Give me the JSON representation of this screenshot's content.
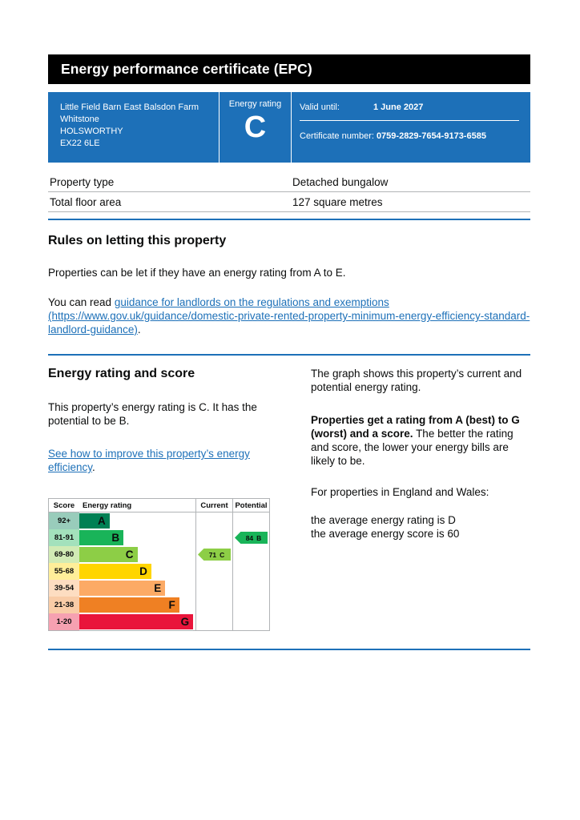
{
  "header": {
    "title": "Energy performance certificate (EPC)"
  },
  "banner": {
    "address_lines": [
      "Little Field Barn East Balsdon Farm",
      "Whitstone",
      "HOLSWORTHY",
      "EX22 6LE"
    ],
    "energy_rating_label": "Energy rating",
    "energy_rating_value": "C",
    "valid_until_label": "Valid until:",
    "valid_until_value": "1 June 2027",
    "certificate_number_label": "Certificate number:",
    "certificate_number_value": "0759-2829-7654-9173-6585"
  },
  "property_details": {
    "rows": [
      {
        "label": "Property type",
        "value": "Detached bungalow"
      },
      {
        "label": "Total floor area",
        "value": "127 square metres"
      }
    ]
  },
  "letting_rules": {
    "heading": "Rules on letting this property",
    "intro": "Properties can be let if they have an energy rating from A to E.",
    "read_prefix": "You can read ",
    "link_text": "guidance for landlords on the regulations and exemptions (https://www.gov.uk/guidance/domestic-private-rented-property-minimum-energy-efficiency-standard-landlord-guidance)",
    "period": "."
  },
  "rating_section": {
    "heading": "Energy rating and score",
    "summary": "This property’s energy rating is C. It has the potential to be B.",
    "improve_link": "See how to improve this property’s energy efficiency",
    "period": ".",
    "graph_intro": "The graph shows this property’s current and potential energy rating.",
    "explain_bold": "Properties get a rating from A (best) to G (worst) and a score.",
    "explain_rest": "The better the rating and score, the lower your energy bills are likely to be.",
    "region_intro": "For properties in England and Wales:",
    "average_rating": "the average energy rating is D",
    "average_score": "the average energy score is 60"
  },
  "chart_data": {
    "type": "epc-rating-bands",
    "headers": {
      "score": "Score",
      "rating": "Energy rating",
      "current": "Current",
      "potential": "Potential"
    },
    "bands": [
      {
        "range": "92+",
        "letter": "A",
        "color": "#008054",
        "tint": "#99ccbb",
        "bar_width": "26%"
      },
      {
        "range": "81-91",
        "letter": "B",
        "color": "#19b459",
        "tint": "#a3e1bc",
        "bar_width": "38%"
      },
      {
        "range": "69-80",
        "letter": "C",
        "color": "#8dce46",
        "tint": "#d1ebb5",
        "bar_width": "50%"
      },
      {
        "range": "55-68",
        "letter": "D",
        "color": "#ffd500",
        "tint": "#ffee99",
        "bar_width": "62%"
      },
      {
        "range": "39-54",
        "letter": "E",
        "color": "#fcaa65",
        "tint": "#fdddc1",
        "bar_width": "74%"
      },
      {
        "range": "21-38",
        "letter": "F",
        "color": "#ef8023",
        "tint": "#f9cca7",
        "bar_width": "86%"
      },
      {
        "range": "1-20",
        "letter": "G",
        "color": "#e9153b",
        "tint": "#f6a1b1",
        "bar_width": "98%"
      }
    ],
    "current": {
      "score": "71",
      "letter": "C",
      "color": "#8dce46"
    },
    "potential": {
      "score": "84",
      "letter": "B",
      "color": "#19b459"
    }
  },
  "colors": {
    "brand_blue": "#1d70b8",
    "header_background": "#000000",
    "link": "#1d70b8",
    "border_gray": "#b1b4b6",
    "text": "#0b0c0c"
  }
}
